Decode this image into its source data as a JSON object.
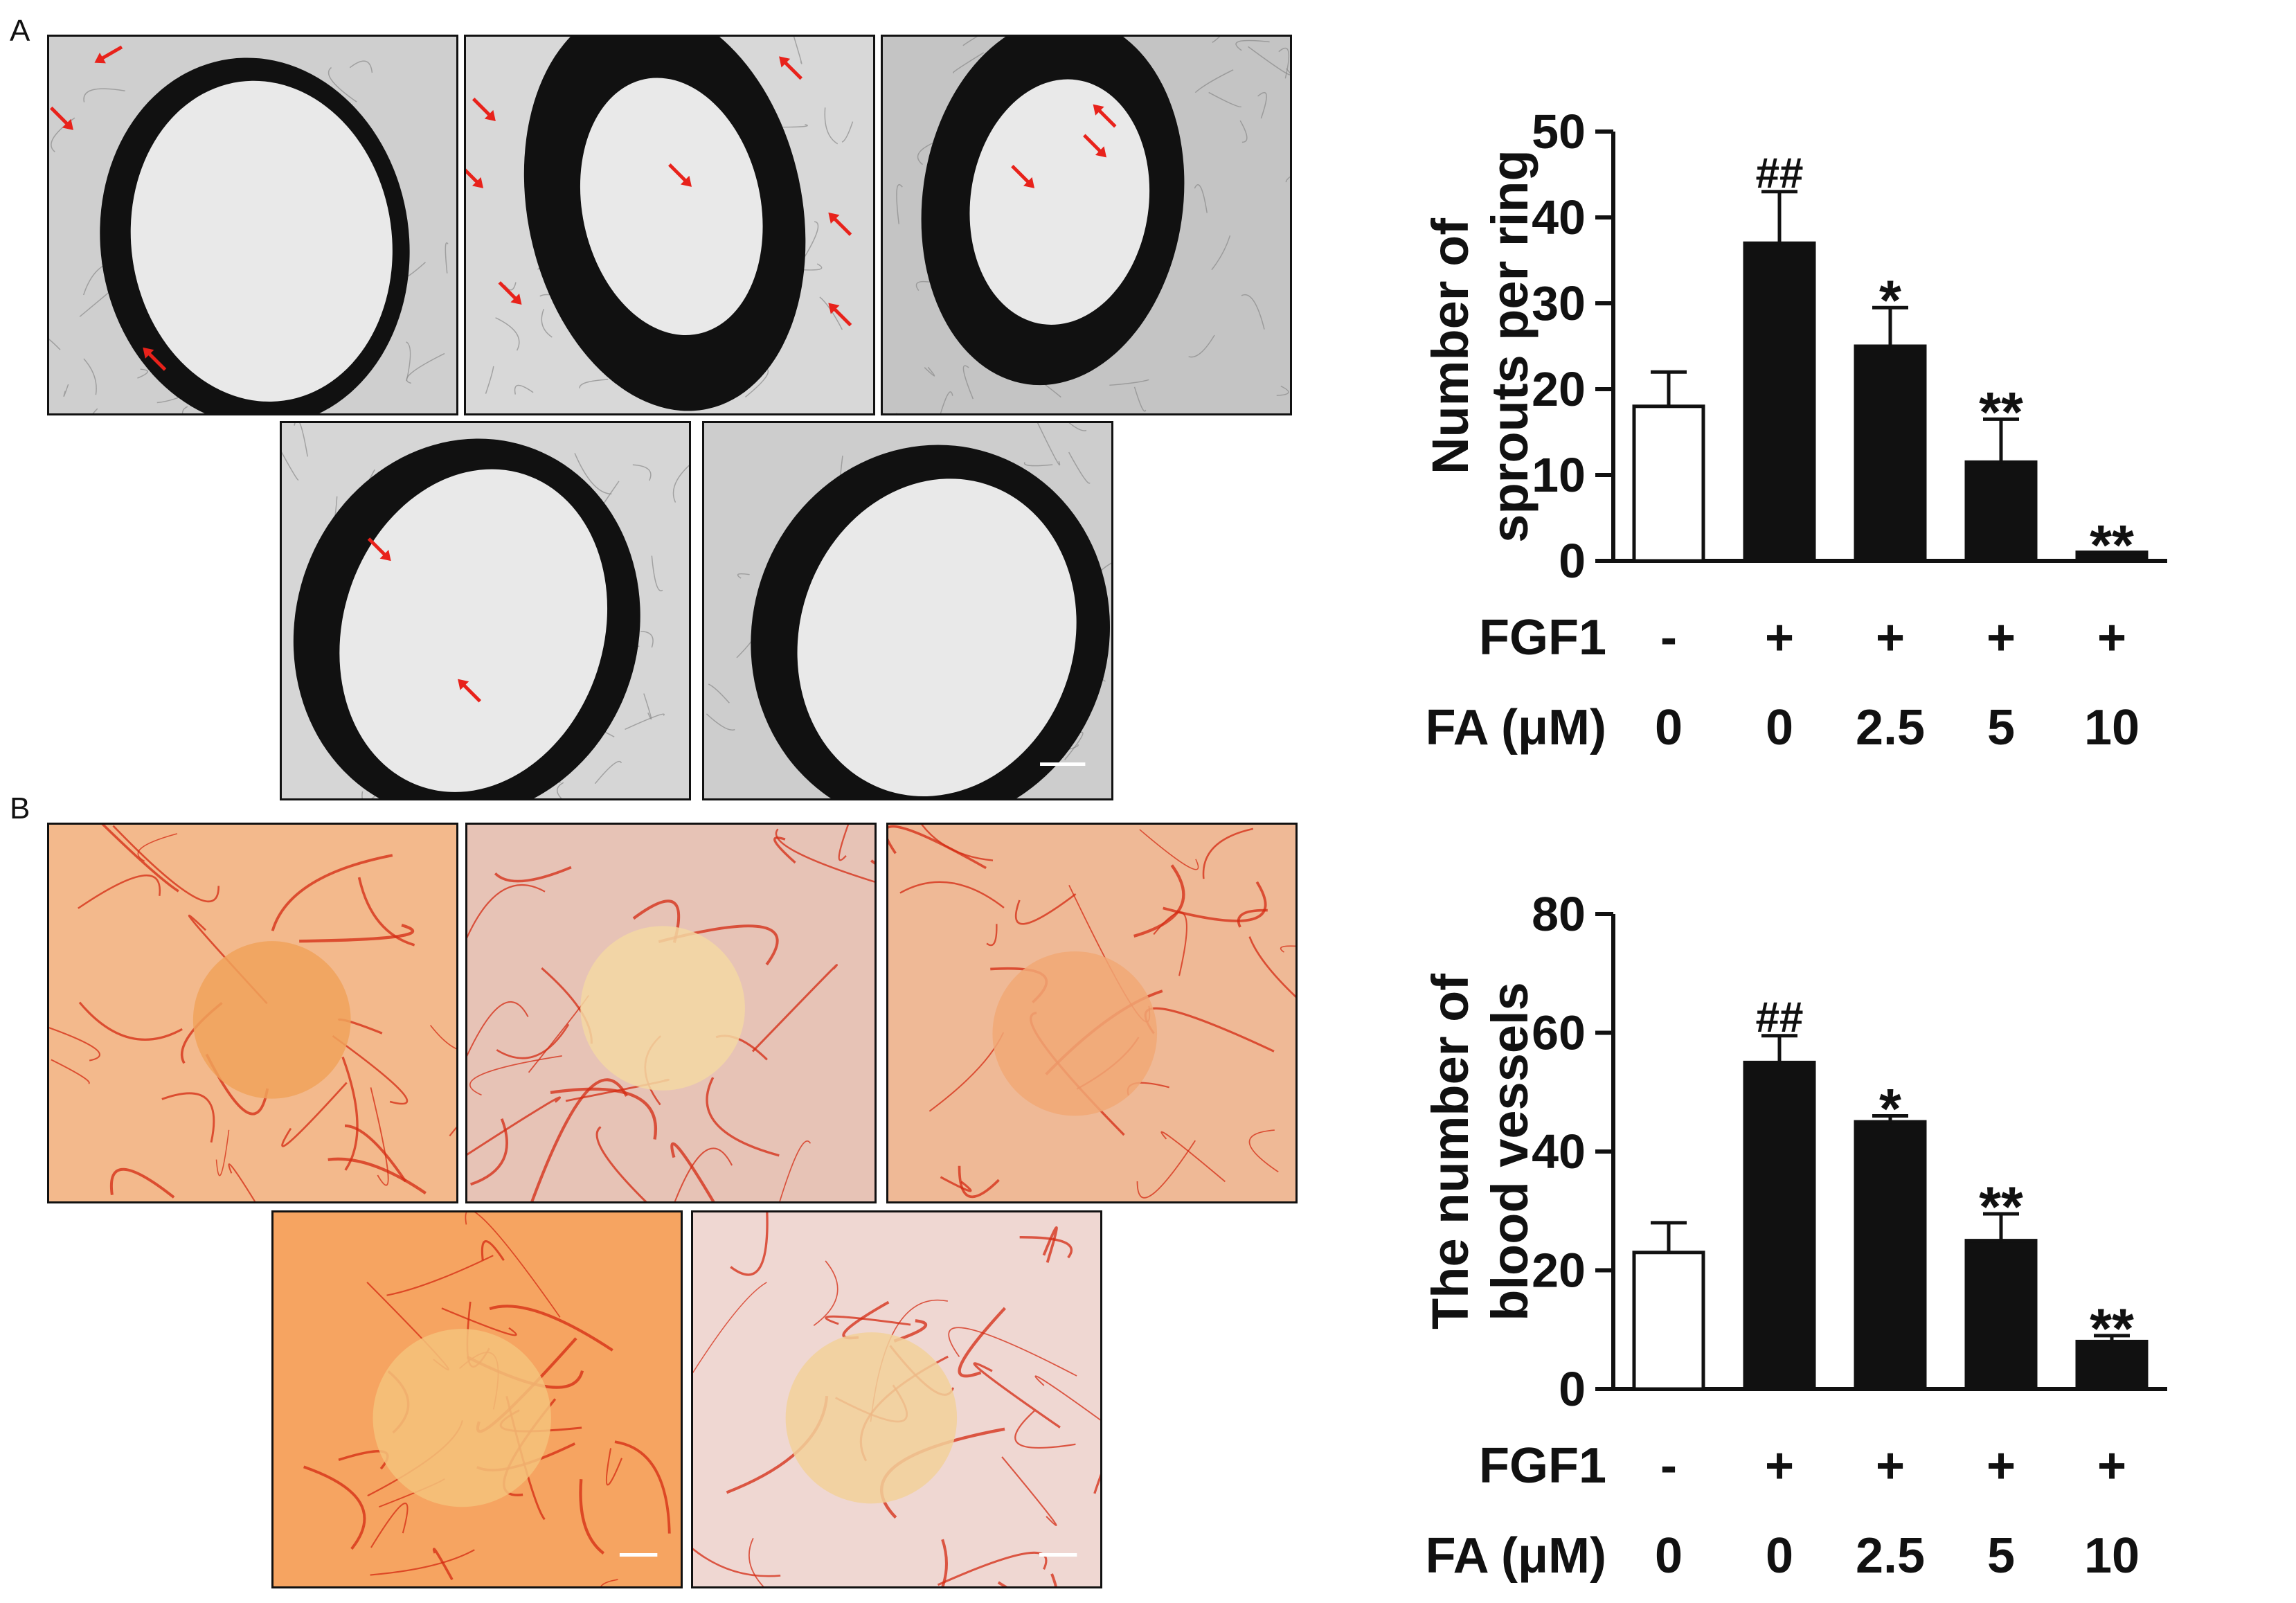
{
  "figure": {
    "panel_a_label": "A",
    "panel_b_label": "B"
  },
  "photos": {
    "panel_a": [
      {
        "name": "aortic-ring-photo-1",
        "style": "bw",
        "arrows": 4
      },
      {
        "name": "aortic-ring-photo-2",
        "style": "bw",
        "arrows": 6
      },
      {
        "name": "aortic-ring-photo-3",
        "style": "bw",
        "arrows": 3
      },
      {
        "name": "aortic-ring-photo-4",
        "style": "bw",
        "arrows": 2
      },
      {
        "name": "aortic-ring-photo-5",
        "style": "bw",
        "arrows": 0,
        "scale_bar": true
      }
    ],
    "panel_b": [
      {
        "name": "cam-photo-1",
        "style": "cam"
      },
      {
        "name": "cam-photo-2",
        "style": "cam"
      },
      {
        "name": "cam-photo-3",
        "style": "cam"
      },
      {
        "name": "cam-photo-4",
        "style": "cam"
      },
      {
        "name": "cam-photo-5",
        "style": "cam",
        "scale_bar": true
      }
    ],
    "colors": {
      "arrow": "#e8221b",
      "vessel": "#d42a12",
      "cam_bg": "#f3b98c"
    }
  },
  "chart_data": [
    {
      "type": "bar",
      "title": "",
      "ylabel_lines": [
        "Number of",
        "sprouts per ring"
      ],
      "ylim": [
        0,
        50
      ],
      "yticks": [
        0,
        10,
        20,
        30,
        40,
        50
      ],
      "categories": [
        "1",
        "2",
        "3",
        "4",
        "5"
      ],
      "values": [
        18,
        37,
        25,
        11.5,
        1
      ],
      "errors": [
        4,
        6,
        4.5,
        5,
        0
      ],
      "fills": [
        "#ffffff",
        "#111111",
        "#111111",
        "#111111",
        "#111111"
      ],
      "annotations": [
        "",
        "##",
        "*",
        "**",
        "**"
      ],
      "condition_rows": [
        {
          "label": "FGF1",
          "values": [
            "-",
            "+",
            "+",
            "+",
            "+"
          ]
        },
        {
          "label": "FA (μM)",
          "values": [
            "0",
            "0",
            "2.5",
            "5",
            "10"
          ]
        }
      ]
    },
    {
      "type": "bar",
      "title": "",
      "ylabel_lines": [
        "The number of",
        "blood vessels"
      ],
      "ylim": [
        0,
        80
      ],
      "yticks": [
        0,
        20,
        40,
        60,
        80
      ],
      "categories": [
        "1",
        "2",
        "3",
        "4",
        "5"
      ],
      "values": [
        23,
        55,
        45,
        25,
        8
      ],
      "errors": [
        5,
        4.5,
        1,
        4.5,
        1
      ],
      "fills": [
        "#ffffff",
        "#111111",
        "#111111",
        "#111111",
        "#111111"
      ],
      "annotations": [
        "",
        "##",
        "*",
        "**",
        "**"
      ],
      "condition_rows": [
        {
          "label": "FGF1",
          "values": [
            "-",
            "+",
            "+",
            "+",
            "+"
          ]
        },
        {
          "label": "FA (μM)",
          "values": [
            "0",
            "0",
            "2.5",
            "5",
            "10"
          ]
        }
      ]
    }
  ]
}
